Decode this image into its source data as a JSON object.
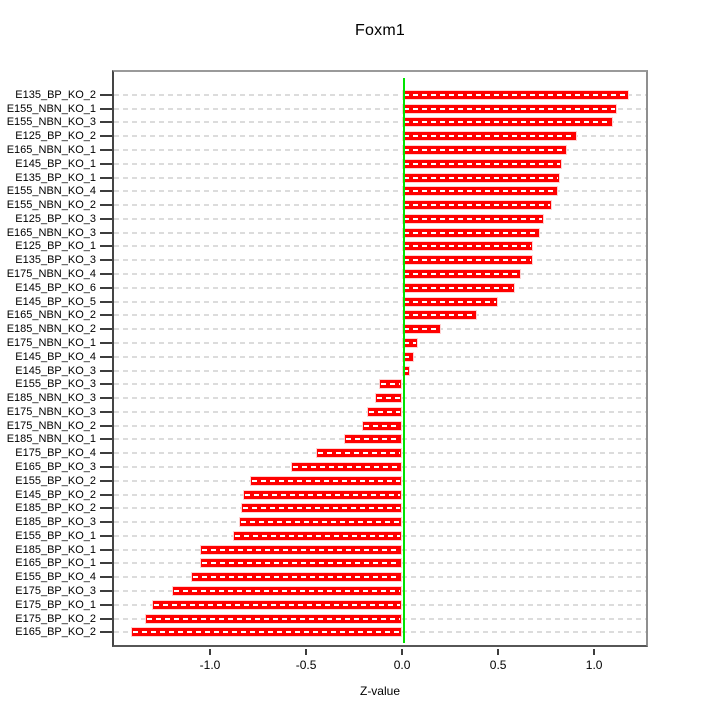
{
  "chart_data": {
    "type": "bar",
    "orientation": "horizontal",
    "title": "Foxm1",
    "xlabel": "Z-value",
    "categories": [
      "E135_BP_KO_2",
      "E155_NBN_KO_1",
      "E155_NBN_KO_3",
      "E125_BP_KO_2",
      "E165_NBN_KO_1",
      "E145_BP_KO_1",
      "E135_BP_KO_1",
      "E155_NBN_KO_4",
      "E155_NBN_KO_2",
      "E125_BP_KO_3",
      "E165_NBN_KO_3",
      "E125_BP_KO_1",
      "E135_BP_KO_3",
      "E175_NBN_KO_4",
      "E145_BP_KO_6",
      "E145_BP_KO_5",
      "E165_NBN_KO_2",
      "E185_NBN_KO_2",
      "E175_NBN_KO_1",
      "E145_BP_KO_4",
      "E145_BP_KO_3",
      "E155_BP_KO_3",
      "E185_NBN_KO_3",
      "E175_NBN_KO_3",
      "E175_NBN_KO_2",
      "E185_NBN_KO_1",
      "E175_BP_KO_4",
      "E165_BP_KO_3",
      "E155_BP_KO_2",
      "E145_BP_KO_2",
      "E185_BP_KO_2",
      "E185_BP_KO_3",
      "E155_BP_KO_1",
      "E185_BP_KO_1",
      "E165_BP_KO_1",
      "E155_BP_KO_4",
      "E175_BP_KO_3",
      "E175_BP_KO_1",
      "E175_BP_KO_2",
      "E165_BP_KO_2"
    ],
    "values": [
      1.17,
      1.11,
      1.09,
      0.9,
      0.85,
      0.82,
      0.81,
      0.8,
      0.77,
      0.73,
      0.71,
      0.67,
      0.67,
      0.61,
      0.58,
      0.49,
      0.38,
      0.19,
      0.07,
      0.05,
      0.03,
      -0.11,
      -0.13,
      -0.17,
      -0.2,
      -0.29,
      -0.44,
      -0.57,
      -0.78,
      -0.82,
      -0.83,
      -0.84,
      -0.87,
      -1.04,
      -1.04,
      -1.09,
      -1.19,
      -1.29,
      -1.33,
      -1.4
    ],
    "x_ticks": {
      "values": [
        -1.0,
        -0.5,
        0.0,
        0.5,
        1.0
      ],
      "labels": [
        "-1.0",
        "-0.5",
        "0.0",
        "0.5",
        "1.0"
      ]
    },
    "xlim": [
      -1.5,
      1.27
    ],
    "grid": true,
    "legend": false,
    "colors": {
      "bar": "#ff0000",
      "bar_stripe": "#ffffff",
      "zero_line": "#00e400",
      "grid_line": "#dcdcdc",
      "axis_text": "#000000"
    }
  }
}
